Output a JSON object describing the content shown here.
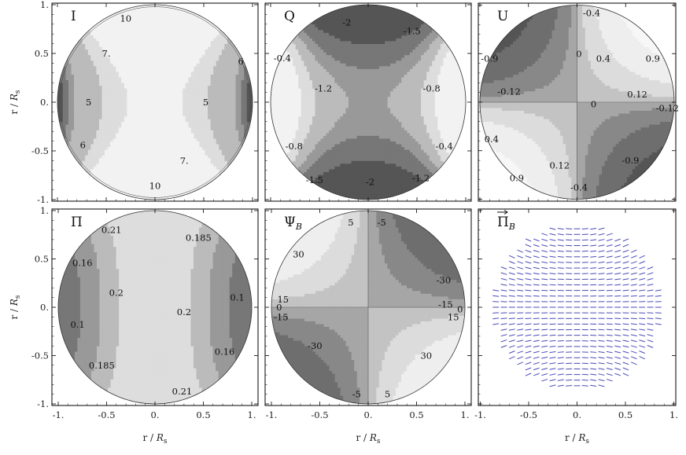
{
  "chart_data": [
    {
      "type": "contour",
      "title": "I",
      "xlabel": "",
      "ylabel": "r / R_s",
      "xlim": [
        -1,
        1
      ],
      "ylim": [
        -1,
        1
      ],
      "contour_labels": [
        {
          "text": "10",
          "x": -0.3,
          "y": 0.86
        },
        {
          "text": "7.",
          "x": -0.5,
          "y": 0.5
        },
        {
          "text": "6",
          "x": 0.88,
          "y": 0.42
        },
        {
          "text": "5",
          "x": -0.68,
          "y": 0.0
        },
        {
          "text": "5",
          "x": 0.52,
          "y": 0.0
        },
        {
          "text": "6",
          "x": -0.74,
          "y": -0.44
        },
        {
          "text": "7.",
          "x": 0.3,
          "y": -0.6
        },
        {
          "text": "10",
          "x": 0.0,
          "y": -0.86
        }
      ]
    },
    {
      "type": "contour",
      "title": "Q",
      "xlabel": "",
      "ylabel": "",
      "xlim": [
        -1,
        1
      ],
      "ylim": [
        -1,
        1
      ],
      "contour_labels": [
        {
          "text": "-2",
          "x": -0.22,
          "y": 0.82
        },
        {
          "text": "-1.5",
          "x": 0.45,
          "y": 0.73
        },
        {
          "text": "-0.4",
          "x": -0.88,
          "y": 0.45
        },
        {
          "text": "-1.2",
          "x": -0.46,
          "y": 0.14
        },
        {
          "text": "-0.8",
          "x": 0.65,
          "y": 0.14
        },
        {
          "text": "-0.8",
          "x": -0.76,
          "y": -0.45
        },
        {
          "text": "-0.4",
          "x": 0.78,
          "y": -0.45
        },
        {
          "text": "-1.5",
          "x": -0.55,
          "y": -0.8
        },
        {
          "text": "-1.2",
          "x": 0.54,
          "y": -0.78
        },
        {
          "text": "-2",
          "x": 0.02,
          "y": -0.82
        }
      ]
    },
    {
      "type": "contour",
      "title": "U",
      "xlabel": "",
      "ylabel": "",
      "xlim": [
        -1,
        1
      ],
      "ylim": [
        -1,
        1
      ],
      "contour_labels": [
        {
          "text": "-0.4",
          "x": 0.15,
          "y": 0.92
        },
        {
          "text": "-0.9",
          "x": -0.9,
          "y": 0.45
        },
        {
          "text": "0",
          "x": 0.02,
          "y": 0.5
        },
        {
          "text": "0.4",
          "x": 0.27,
          "y": 0.45
        },
        {
          "text": "0.9",
          "x": 0.78,
          "y": 0.45
        },
        {
          "text": "-0.12",
          "x": -0.7,
          "y": 0.11
        },
        {
          "text": "0.12",
          "x": 0.62,
          "y": 0.08
        },
        {
          "text": "0",
          "x": 0.17,
          "y": -0.02
        },
        {
          "text": "-0.12",
          "x": 0.93,
          "y": -0.06
        },
        {
          "text": "0.4",
          "x": -0.88,
          "y": -0.38
        },
        {
          "text": "0.12",
          "x": -0.18,
          "y": -0.65
        },
        {
          "text": "-0.9",
          "x": 0.55,
          "y": -0.6
        },
        {
          "text": "0.9",
          "x": -0.62,
          "y": -0.78
        },
        {
          "text": "-0.4",
          "x": 0.02,
          "y": -0.88
        }
      ]
    },
    {
      "type": "contour",
      "title": "Π",
      "xlabel": "r / R_s",
      "ylabel": "r / R_s",
      "xlim": [
        -1,
        1
      ],
      "ylim": [
        -1,
        1
      ],
      "contour_labels": [
        {
          "text": "0.21",
          "x": -0.45,
          "y": 0.8
        },
        {
          "text": "0.185",
          "x": 0.45,
          "y": 0.72
        },
        {
          "text": "0.16",
          "x": -0.75,
          "y": 0.46
        },
        {
          "text": "0.2",
          "x": -0.4,
          "y": 0.15
        },
        {
          "text": "0.1",
          "x": 0.85,
          "y": 0.1
        },
        {
          "text": "0.2",
          "x": 0.3,
          "y": -0.05
        },
        {
          "text": "0.1",
          "x": -0.8,
          "y": -0.18
        },
        {
          "text": "0.16",
          "x": 0.72,
          "y": -0.46
        },
        {
          "text": "0.185",
          "x": -0.55,
          "y": -0.6
        },
        {
          "text": "0.21",
          "x": 0.28,
          "y": -0.87
        }
      ]
    },
    {
      "type": "contour",
      "title": "Ψ_B",
      "xlabel": "r / R_s",
      "ylabel": "",
      "xlim": [
        -1,
        1
      ],
      "ylim": [
        -1,
        1
      ],
      "contour_labels": [
        {
          "text": "5",
          "x": -0.18,
          "y": 0.88
        },
        {
          "text": "-5",
          "x": 0.14,
          "y": 0.88
        },
        {
          "text": "30",
          "x": -0.72,
          "y": 0.55
        },
        {
          "text": "-30",
          "x": 0.78,
          "y": 0.28
        },
        {
          "text": "15",
          "x": -0.88,
          "y": 0.08
        },
        {
          "text": "-15",
          "x": 0.8,
          "y": 0.03
        },
        {
          "text": "0",
          "x": -0.92,
          "y": 0.0
        },
        {
          "text": "0",
          "x": 0.95,
          "y": -0.02
        },
        {
          "text": "-15",
          "x": -0.9,
          "y": -0.1
        },
        {
          "text": "15",
          "x": 0.88,
          "y": -0.1
        },
        {
          "text": "-30",
          "x": -0.55,
          "y": -0.4
        },
        {
          "text": "30",
          "x": 0.6,
          "y": -0.5
        },
        {
          "text": "-5",
          "x": -0.12,
          "y": -0.9
        },
        {
          "text": "5",
          "x": 0.2,
          "y": -0.9
        }
      ]
    },
    {
      "type": "vector",
      "title": "Π_B",
      "xlabel": "r / R_s",
      "ylabel": "",
      "xlim": [
        -1,
        1
      ],
      "ylim": [
        -1,
        1
      ]
    }
  ],
  "ticks": {
    "x": [
      "-1.",
      "-0.5",
      "0.",
      "0.5",
      "1."
    ],
    "y": [
      "1.",
      "0.5",
      "0.",
      "-0.5",
      "-1."
    ]
  },
  "colors": {
    "contour_line": "#444444",
    "vector": "#4a4ab8",
    "frame": "#000000"
  }
}
